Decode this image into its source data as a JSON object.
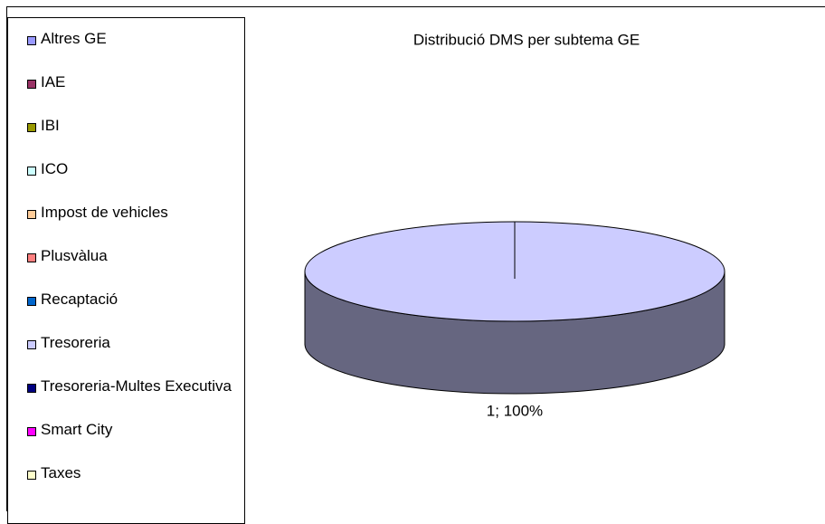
{
  "chart_data": {
    "type": "pie",
    "title": "Distribució DMS per subtema GE",
    "categories": [
      "Altres GE",
      "IAE",
      "IBI",
      "ICO",
      "Impost de vehicles",
      "Plusvàlua",
      "Recaptació",
      "Tresoreria",
      "Tresoreria-Multes Executiva",
      "Smart City",
      "Taxes"
    ],
    "values": [
      0,
      0,
      0,
      0,
      0,
      0,
      0,
      1,
      0,
      0,
      0
    ],
    "value_labels": [
      null,
      null,
      null,
      null,
      null,
      null,
      null,
      "1; 100%",
      null,
      null,
      null
    ],
    "colors": [
      "#9999ff",
      "#993366",
      "#999900",
      "#ccffff",
      "#ffcc99",
      "#ff8080",
      "#0066cc",
      "#ccccff",
      "#000080",
      "#ff00ff",
      "#ffffcc"
    ],
    "legend": "left"
  }
}
